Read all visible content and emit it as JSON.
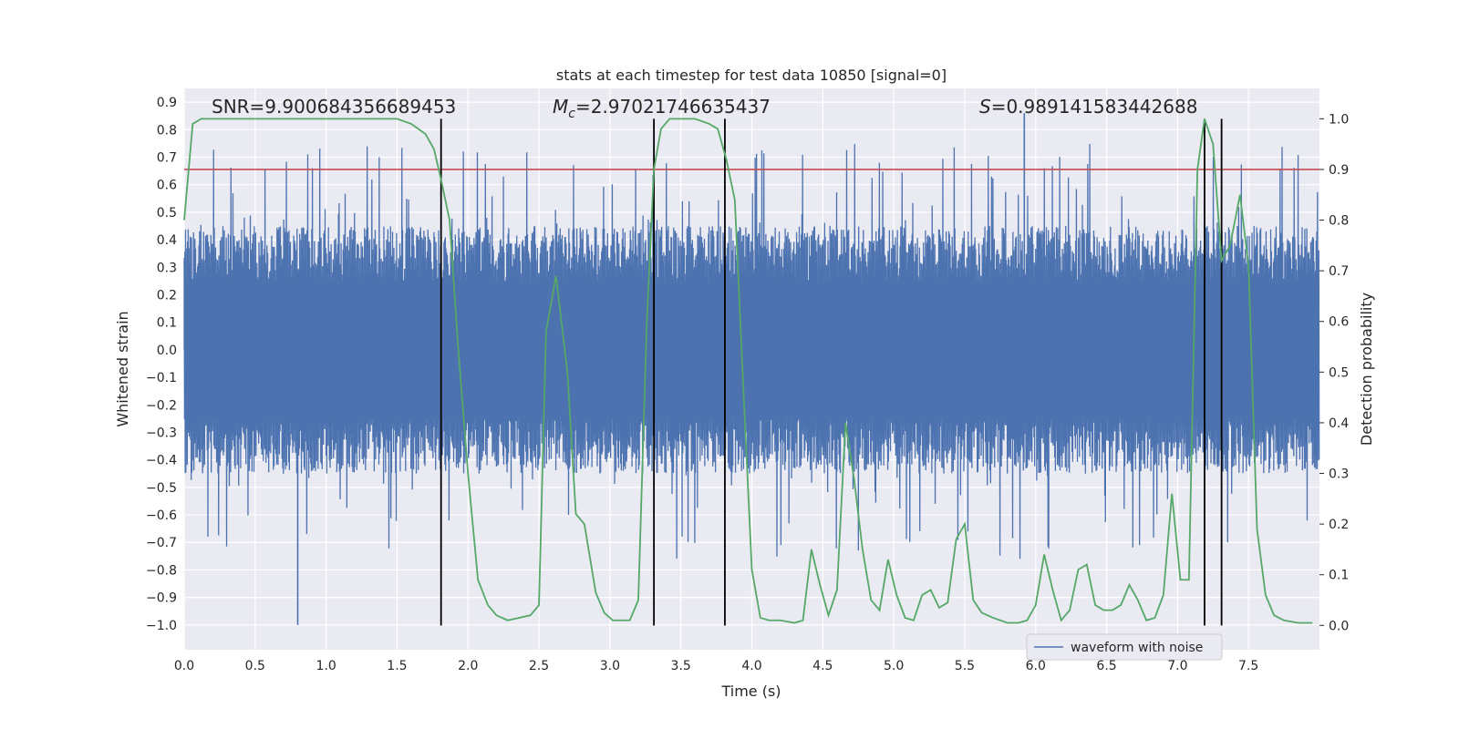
{
  "chart_data": {
    "type": "line",
    "title": "stats at each timestep for test data 10850 [signal=0]",
    "xlabel": "Time (s)",
    "ylabel": "Whitened strain",
    "y2label": "Detection probability",
    "xlim": [
      0,
      8
    ],
    "ylim": [
      -1.09,
      0.95
    ],
    "y2lim": [
      -0.048,
      1.06
    ],
    "xticks": [
      0.0,
      0.5,
      1.0,
      1.5,
      2.0,
      2.5,
      3.0,
      3.5,
      4.0,
      4.5,
      5.0,
      5.5,
      6.0,
      6.5,
      7.0,
      7.5
    ],
    "xtick_labels": [
      "0.0",
      "0.5",
      "1.0",
      "1.5",
      "2.0",
      "2.5",
      "3.0",
      "3.5",
      "4.0",
      "4.5",
      "5.0",
      "5.5",
      "6.0",
      "6.5",
      "7.0",
      "7.5"
    ],
    "yticks": [
      0.9,
      0.8,
      0.7,
      0.6,
      0.5,
      0.4,
      0.3,
      0.2,
      0.1,
      0.0,
      -0.1,
      -0.2,
      -0.3,
      -0.4,
      -0.5,
      -0.6,
      -0.7,
      -0.8,
      -0.9,
      -1.0
    ],
    "ytick_labels": [
      "0.9",
      "0.8",
      "0.7",
      "0.6",
      "0.5",
      "0.4",
      "0.3",
      "0.2",
      "0.1",
      "0.0",
      "−0.1",
      "−0.2",
      "−0.3",
      "−0.4",
      "−0.5",
      "−0.6",
      "−0.7",
      "−0.8",
      "−0.9",
      "−1.0"
    ],
    "y2ticks": [
      1.0,
      0.9,
      0.8,
      0.7,
      0.6,
      0.5,
      0.4,
      0.3,
      0.2,
      0.1,
      0.0
    ],
    "y2tick_labels": [
      "1.0",
      "0.9",
      "0.8",
      "0.7",
      "0.6",
      "0.5",
      "0.4",
      "0.3",
      "0.2",
      "0.1",
      "0.0"
    ],
    "threshold": {
      "value": 0.9,
      "axis": "y2",
      "color": "#c44e52"
    },
    "vertical_lines": [
      1.81,
      3.31,
      3.81,
      7.19,
      7.31
    ],
    "annotations": [
      {
        "text": "SNR=9.900684356689453"
      },
      {
        "text_prefix": "M",
        "text_sub": "c",
        "text_suffix": "=2.97021746635437"
      },
      {
        "text_prefix": "S",
        "text_suffix": "=0.989141583442688"
      }
    ],
    "series": [
      {
        "name": "waveform with noise",
        "axis": "y",
        "color": "#4c72b0",
        "style": "noise",
        "envelope_typical": [
          -0.45,
          0.45
        ],
        "spike_range": [
          -1.0,
          0.86
        ]
      },
      {
        "name": "detection probability",
        "axis": "y2",
        "color": "#55a868",
        "x": [
          0.0,
          0.06,
          0.12,
          0.2,
          0.3,
          0.5,
          0.8,
          1.0,
          1.2,
          1.4,
          1.5,
          1.6,
          1.7,
          1.76,
          1.81,
          1.87,
          1.93,
          2.0,
          2.07,
          2.14,
          2.2,
          2.28,
          2.36,
          2.44,
          2.5,
          2.55,
          2.62,
          2.7,
          2.76,
          2.82,
          2.9,
          2.96,
          3.02,
          3.08,
          3.14,
          3.2,
          3.26,
          3.31,
          3.36,
          3.42,
          3.5,
          3.6,
          3.7,
          3.76,
          3.82,
          3.88,
          3.94,
          4.0,
          4.06,
          4.12,
          4.2,
          4.3,
          4.36,
          4.42,
          4.48,
          4.54,
          4.6,
          4.66,
          4.72,
          4.78,
          4.84,
          4.9,
          4.96,
          5.02,
          5.08,
          5.14,
          5.2,
          5.26,
          5.32,
          5.38,
          5.44,
          5.5,
          5.56,
          5.62,
          5.7,
          5.8,
          5.88,
          5.94,
          6.0,
          6.06,
          6.12,
          6.18,
          6.24,
          6.3,
          6.36,
          6.42,
          6.48,
          6.54,
          6.6,
          6.66,
          6.72,
          6.78,
          6.84,
          6.9,
          6.96,
          7.02,
          7.08,
          7.14,
          7.19,
          7.25,
          7.31,
          7.37,
          7.44,
          7.5,
          7.56,
          7.62,
          7.68,
          7.75,
          7.85,
          7.95
        ],
        "values": [
          0.8,
          0.99,
          1.0,
          1.0,
          1.0,
          1.0,
          1.0,
          1.0,
          1.0,
          1.0,
          1.0,
          0.99,
          0.97,
          0.94,
          0.88,
          0.8,
          0.55,
          0.3,
          0.09,
          0.04,
          0.02,
          0.01,
          0.015,
          0.02,
          0.04,
          0.58,
          0.69,
          0.5,
          0.22,
          0.2,
          0.065,
          0.025,
          0.01,
          0.01,
          0.01,
          0.05,
          0.6,
          0.9,
          0.98,
          1.0,
          1.0,
          1.0,
          0.99,
          0.98,
          0.92,
          0.84,
          0.47,
          0.11,
          0.015,
          0.01,
          0.01,
          0.005,
          0.01,
          0.15,
          0.08,
          0.02,
          0.07,
          0.4,
          0.29,
          0.15,
          0.05,
          0.03,
          0.13,
          0.06,
          0.015,
          0.01,
          0.06,
          0.07,
          0.035,
          0.045,
          0.17,
          0.2,
          0.05,
          0.025,
          0.015,
          0.005,
          0.005,
          0.01,
          0.04,
          0.14,
          0.07,
          0.01,
          0.03,
          0.11,
          0.12,
          0.04,
          0.03,
          0.03,
          0.04,
          0.08,
          0.05,
          0.01,
          0.015,
          0.06,
          0.26,
          0.09,
          0.09,
          0.9,
          1.0,
          0.95,
          0.72,
          0.75,
          0.85,
          0.71,
          0.19,
          0.06,
          0.02,
          0.01,
          0.005,
          0.005
        ]
      }
    ],
    "legend": {
      "entries": [
        "waveform with noise"
      ],
      "position": "lower-right"
    }
  }
}
